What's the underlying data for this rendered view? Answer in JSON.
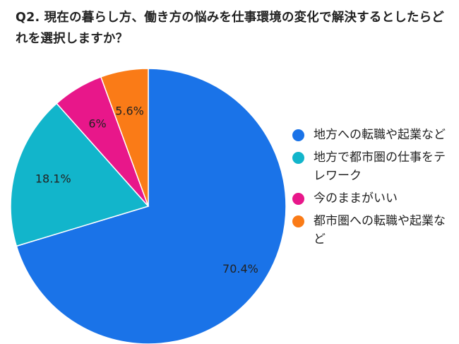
{
  "title": "Q2. 現在の暮らし方、働き方の悩みを仕事環境の変化で解決するとしたらどれを選択しますか？",
  "chart_data": {
    "type": "pie",
    "title": "Q2. 現在の暮らし方、働き方の悩みを仕事環境の変化で解決するとしたらどれを選択しますか？",
    "slices": [
      {
        "label": "地方への転職や起業など",
        "value": 70.4,
        "display": "70.4%",
        "color": "#1a73e8"
      },
      {
        "label": "地方で都市圏の仕事をテレワーク",
        "value": 18.1,
        "display": "18.1%",
        "color": "#12b5cb"
      },
      {
        "label": "今のままがいい",
        "value": 6.0,
        "display": "6%",
        "color": "#e8178a"
      },
      {
        "label": "都市圏への転職や起業など",
        "value": 5.6,
        "display": "5.6%",
        "color": "#fa7b17"
      }
    ],
    "legend_position": "right"
  }
}
